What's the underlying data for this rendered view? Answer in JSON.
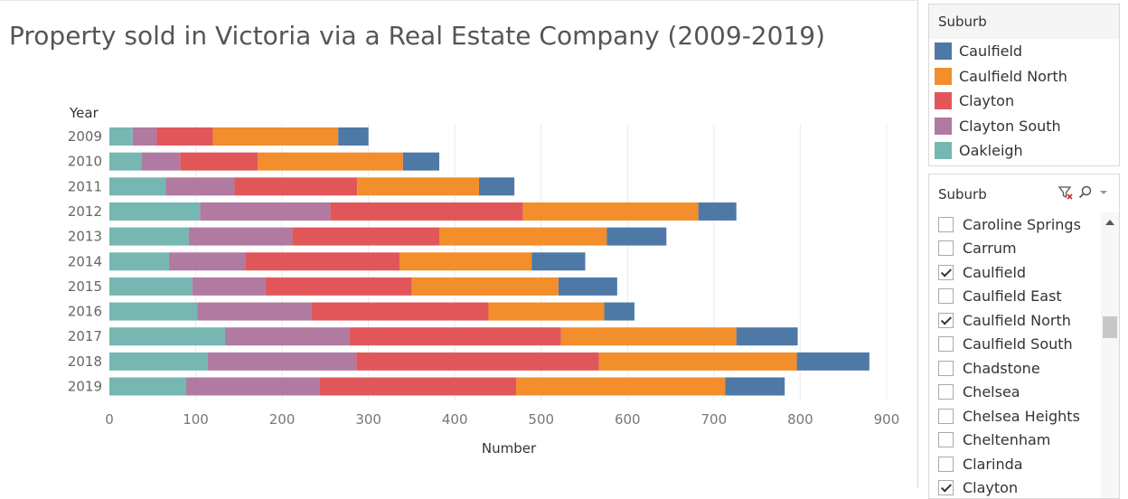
{
  "chart": {
    "title": "Property sold in Victoria via a Real Estate Company (2009-2019)"
  },
  "chart_data": {
    "type": "bar",
    "orientation": "horizontal",
    "stacked": true,
    "title": "Property sold in Victoria via a Real Estate Company (2009-2019)",
    "xlabel": "Number",
    "ylabel": "Year",
    "xlim": [
      0,
      950
    ],
    "xticks": [
      0,
      100,
      200,
      300,
      400,
      500,
      600,
      700,
      800,
      900
    ],
    "grid": "vertical",
    "categories": [
      "2009",
      "2010",
      "2011",
      "2012",
      "2013",
      "2014",
      "2015",
      "2016",
      "2017",
      "2018",
      "2019"
    ],
    "series": [
      {
        "name": "Oakleigh",
        "color": "#76b7b2",
        "values": [
          27,
          37,
          65,
          105,
          92,
          69,
          96,
          102,
          134,
          114,
          89
        ]
      },
      {
        "name": "Clayton South",
        "color": "#b07aa1",
        "values": [
          28,
          45,
          80,
          151,
          120,
          89,
          85,
          132,
          144,
          172,
          154
        ]
      },
      {
        "name": "Clayton",
        "color": "#e15759",
        "values": [
          65,
          90,
          142,
          223,
          170,
          178,
          169,
          205,
          245,
          281,
          228
        ]
      },
      {
        "name": "Caulfield North",
        "color": "#f28e2b",
        "values": [
          145,
          168,
          141,
          203,
          194,
          153,
          170,
          134,
          203,
          229,
          242
        ]
      },
      {
        "name": "Caulfield",
        "color": "#4e79a7",
        "values": [
          35,
          42,
          41,
          44,
          69,
          62,
          68,
          35,
          71,
          84,
          69
        ]
      }
    ]
  },
  "legend": {
    "title": "Suburb",
    "items": [
      {
        "label": "Caulfield",
        "color": "#4e79a7"
      },
      {
        "label": "Caulfield North",
        "color": "#f28e2b"
      },
      {
        "label": "Clayton",
        "color": "#e15759"
      },
      {
        "label": "Clayton South",
        "color": "#b07aa1"
      },
      {
        "label": "Oakleigh",
        "color": "#76b7b2"
      }
    ]
  },
  "filter": {
    "title": "Suburb",
    "clear_icon": "clear-filter-icon",
    "search_icon": "search-icon",
    "menu_icon": "dropdown-arrow-icon",
    "items": [
      {
        "label": "Caroline Springs",
        "checked": false
      },
      {
        "label": "Carrum",
        "checked": false
      },
      {
        "label": "Caulfield",
        "checked": true
      },
      {
        "label": "Caulfield East",
        "checked": false
      },
      {
        "label": "Caulfield North",
        "checked": true
      },
      {
        "label": "Caulfield South",
        "checked": false
      },
      {
        "label": "Chadstone",
        "checked": false
      },
      {
        "label": "Chelsea",
        "checked": false
      },
      {
        "label": "Chelsea Heights",
        "checked": false
      },
      {
        "label": "Cheltenham",
        "checked": false
      },
      {
        "label": "Clarinda",
        "checked": false
      },
      {
        "label": "Clayton",
        "checked": true
      }
    ]
  }
}
